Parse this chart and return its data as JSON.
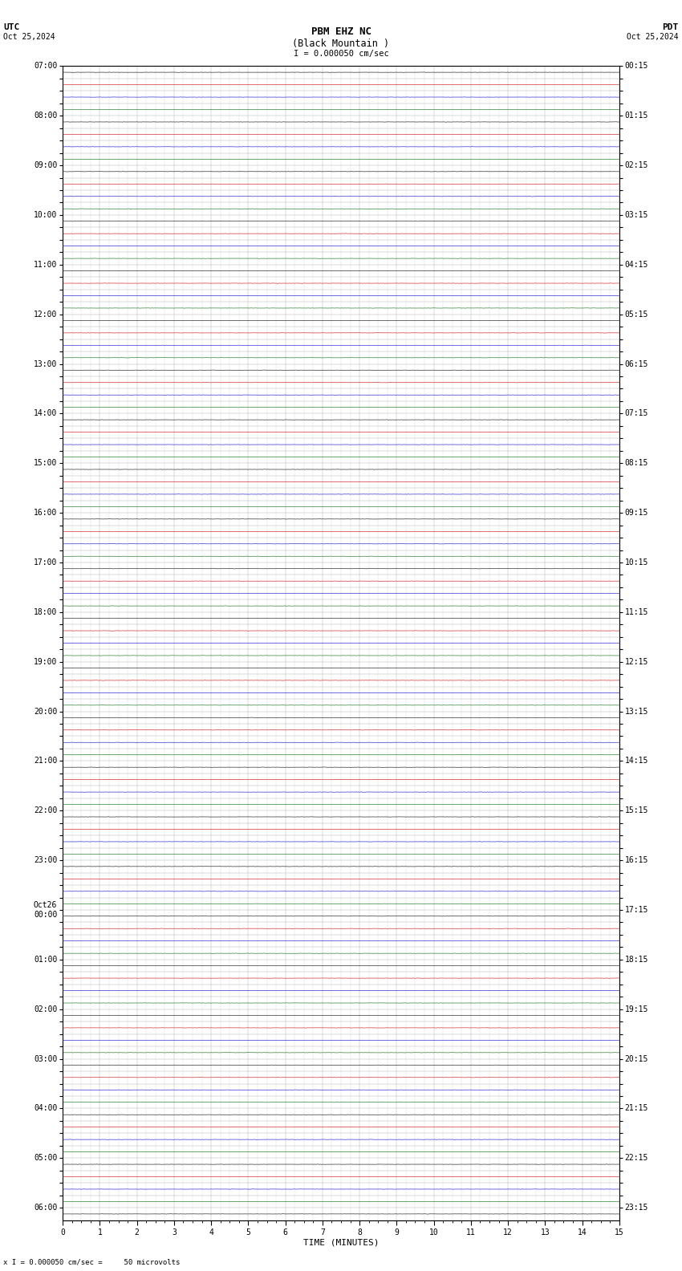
{
  "title_line1": "PBM EHZ NC",
  "title_line2": "(Black Mountain )",
  "scale_text": "I = 0.000050 cm/sec",
  "utc_label": "UTC",
  "utc_date": "Oct 25,2024",
  "pdt_label": "PDT",
  "pdt_date": "Oct 25,2024",
  "bottom_label": "TIME (MINUTES)",
  "bottom_note": "x I = 0.000050 cm/sec =     50 microvolts",
  "xlabel_ticks": [
    0,
    1,
    2,
    3,
    4,
    5,
    6,
    7,
    8,
    9,
    10,
    11,
    12,
    13,
    14,
    15
  ],
  "left_labels": [
    "07:00",
    "",
    "",
    "",
    "08:00",
    "",
    "",
    "",
    "09:00",
    "",
    "",
    "",
    "10:00",
    "",
    "",
    "",
    "11:00",
    "",
    "",
    "",
    "12:00",
    "",
    "",
    "",
    "13:00",
    "",
    "",
    "",
    "14:00",
    "",
    "",
    "",
    "15:00",
    "",
    "",
    "",
    "16:00",
    "",
    "",
    "",
    "17:00",
    "",
    "",
    "",
    "18:00",
    "",
    "",
    "",
    "19:00",
    "",
    "",
    "",
    "20:00",
    "",
    "",
    "",
    "21:00",
    "",
    "",
    "",
    "22:00",
    "",
    "",
    "",
    "23:00",
    "",
    "",
    "",
    "Oct26\n00:00",
    "",
    "",
    "",
    "01:00",
    "",
    "",
    "",
    "02:00",
    "",
    "",
    "",
    "03:00",
    "",
    "",
    "",
    "04:00",
    "",
    "",
    "",
    "05:00",
    "",
    "",
    "",
    "06:00"
  ],
  "right_labels": [
    "00:15",
    "",
    "",
    "",
    "01:15",
    "",
    "",
    "",
    "02:15",
    "",
    "",
    "",
    "03:15",
    "",
    "",
    "",
    "04:15",
    "",
    "",
    "",
    "05:15",
    "",
    "",
    "",
    "06:15",
    "",
    "",
    "",
    "07:15",
    "",
    "",
    "",
    "08:15",
    "",
    "",
    "",
    "09:15",
    "",
    "",
    "",
    "10:15",
    "",
    "",
    "",
    "11:15",
    "",
    "",
    "",
    "12:15",
    "",
    "",
    "",
    "13:15",
    "",
    "",
    "",
    "14:15",
    "",
    "",
    "",
    "15:15",
    "",
    "",
    "",
    "16:15",
    "",
    "",
    "",
    "17:15",
    "",
    "",
    "",
    "18:15",
    "",
    "",
    "",
    "19:15",
    "",
    "",
    "",
    "20:15",
    "",
    "",
    "",
    "21:15",
    "",
    "",
    "",
    "22:15",
    "",
    "",
    "",
    "23:15"
  ],
  "x_min": 0,
  "x_max": 15,
  "noise_amplitude": 0.008,
  "background_color": "#ffffff",
  "grid_color": "#aaaaaa",
  "title_fontsize": 9,
  "label_fontsize": 8,
  "tick_fontsize": 7,
  "row_colors": [
    "#000000",
    "#cc0000",
    "#0000cc",
    "#006600"
  ],
  "special_rows": {}
}
